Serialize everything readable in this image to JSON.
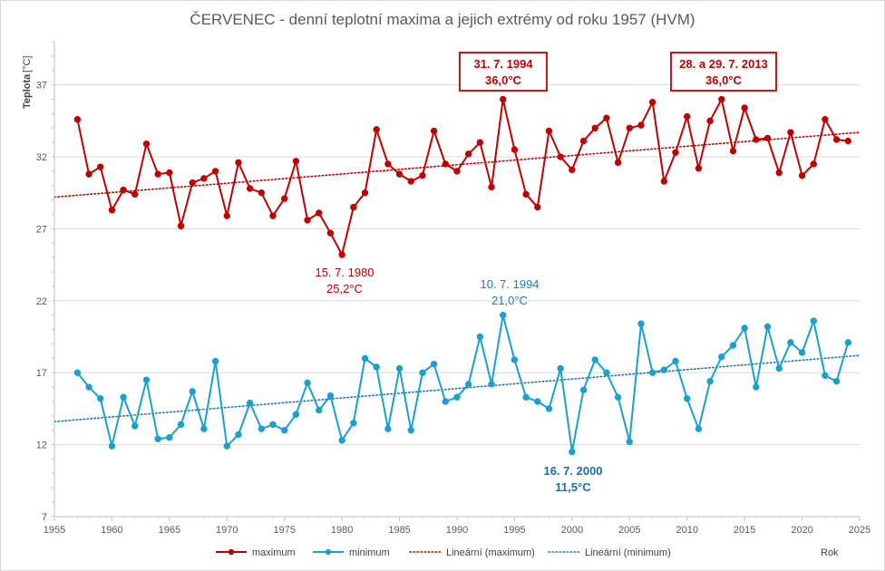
{
  "chart_data": {
    "type": "line",
    "title": "ČERVENEC - denní teplotní maxima a jejich extrémy od roku 1957 (HVM)",
    "ylabel": "Teplota [°C]",
    "ylabel_main": "Teplota",
    "ylabel_unit": "[°C]",
    "xlabel": "Rok",
    "xlim": [
      1955,
      2025
    ],
    "ylim": [
      7,
      40
    ],
    "xticks": [
      1955,
      1960,
      1965,
      1970,
      1975,
      1980,
      1985,
      1990,
      1995,
      2000,
      2005,
      2010,
      2015,
      2020,
      2025
    ],
    "yticks": [
      7,
      12,
      17,
      22,
      27,
      32,
      37
    ],
    "grid": "horizontal",
    "legend_position": "bottom",
    "x": [
      1957,
      1958,
      1959,
      1960,
      1961,
      1962,
      1963,
      1964,
      1965,
      1966,
      1967,
      1968,
      1969,
      1970,
      1971,
      1972,
      1973,
      1974,
      1975,
      1976,
      1977,
      1978,
      1979,
      1980,
      1981,
      1982,
      1983,
      1984,
      1985,
      1986,
      1987,
      1988,
      1989,
      1990,
      1991,
      1992,
      1993,
      1994,
      1995,
      1996,
      1997,
      1998,
      1999,
      2000,
      2001,
      2002,
      2003,
      2004,
      2005,
      2006,
      2007,
      2008,
      2009,
      2010,
      2011,
      2012,
      2013,
      2014,
      2015,
      2016,
      2017,
      2018,
      2019,
      2020,
      2021,
      2022,
      2023,
      2024
    ],
    "series": [
      {
        "name": "maximum",
        "color": "#c00000",
        "values": [
          34.6,
          30.8,
          31.3,
          28.3,
          29.7,
          29.4,
          32.9,
          30.8,
          30.9,
          27.2,
          30.2,
          30.5,
          31.0,
          27.9,
          31.6,
          29.8,
          29.5,
          27.9,
          29.1,
          31.7,
          27.6,
          28.1,
          26.7,
          25.2,
          28.5,
          29.5,
          33.9,
          31.5,
          30.8,
          30.3,
          30.7,
          33.8,
          31.5,
          31.0,
          32.2,
          33.0,
          29.9,
          36.0,
          32.5,
          29.4,
          28.5,
          33.8,
          32.0,
          31.1,
          33.1,
          34.0,
          34.7,
          31.6,
          34.0,
          34.2,
          35.8,
          30.3,
          32.3,
          34.8,
          31.2,
          34.5,
          36.0,
          32.4,
          35.4,
          33.2,
          33.3,
          30.9,
          33.7,
          30.7,
          31.5,
          34.6,
          33.2,
          33.1
        ]
      },
      {
        "name": "minimum",
        "color": "#1aa0d0",
        "values": [
          17.0,
          16.0,
          15.2,
          11.9,
          15.3,
          13.3,
          16.5,
          12.4,
          12.5,
          13.4,
          15.7,
          13.1,
          17.8,
          11.9,
          12.7,
          14.9,
          13.1,
          13.4,
          13.0,
          14.1,
          16.3,
          14.4,
          15.4,
          12.3,
          13.5,
          18.0,
          17.4,
          13.1,
          17.3,
          13.0,
          17.0,
          17.6,
          15.0,
          15.3,
          16.2,
          19.5,
          16.2,
          21.0,
          17.9,
          15.3,
          15.0,
          14.5,
          17.3,
          11.5,
          15.8,
          17.9,
          17.0,
          15.3,
          12.2,
          20.4,
          17.0,
          17.2,
          17.8,
          15.2,
          13.1,
          16.4,
          18.1,
          18.9,
          20.1,
          16.0,
          20.2,
          17.3,
          19.1,
          18.4,
          20.6,
          16.8,
          16.4,
          19.1
        ]
      }
    ],
    "trendlines": [
      {
        "name": "Lineární (maximum)",
        "color": "#c00000",
        "x": [
          1955,
          2025
        ],
        "y": [
          29.2,
          33.7
        ]
      },
      {
        "name": "Lineární (minimum)",
        "color": "#1f77b4",
        "x": [
          1955,
          2025
        ],
        "y": [
          13.6,
          18.2
        ]
      }
    ],
    "annotations": [
      {
        "id": "max-1994",
        "lines": [
          "31. 7. 1994",
          "36,0°C"
        ],
        "color": "#c00000",
        "boxed": true,
        "bold": true
      },
      {
        "id": "max-2013",
        "lines": [
          "28. a 29. 7. 2013",
          "36,0°C"
        ],
        "color": "#c00000",
        "boxed": true,
        "bold": true
      },
      {
        "id": "min-1980",
        "lines": [
          "15. 7. 1980",
          "25,2°C"
        ],
        "color": "#c00000",
        "boxed": false,
        "bold": false
      },
      {
        "id": "min-1994",
        "lines": [
          "10. 7. 1994",
          "21,0°C"
        ],
        "color": "#1a7fbf",
        "boxed": false,
        "bold": false
      },
      {
        "id": "min-2000",
        "lines": [
          "16. 7. 2000",
          "11,5°C"
        ],
        "color": "#1a6fb0",
        "boxed": false,
        "bold": true
      }
    ],
    "legend": [
      {
        "label": "maximum",
        "color": "#c00000",
        "style": "line-marker"
      },
      {
        "label": "minimum",
        "color": "#1aa0d0",
        "style": "line-marker"
      },
      {
        "label": "Lineární (maximum)",
        "color": "#c00000",
        "style": "dotted"
      },
      {
        "label": "Lineární (minimum)",
        "color": "#1f77b4",
        "style": "dotted"
      }
    ]
  }
}
